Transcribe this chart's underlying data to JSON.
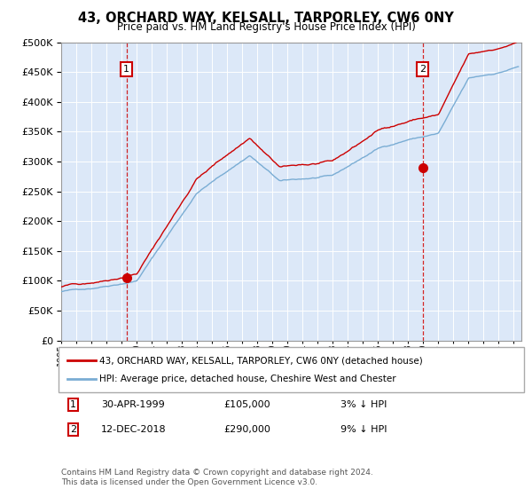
{
  "title": "43, ORCHARD WAY, KELSALL, TARPORLEY, CW6 0NY",
  "subtitle": "Price paid vs. HM Land Registry's House Price Index (HPI)",
  "plot_bg_color": "#dce8f8",
  "xmin": 1995.0,
  "xmax": 2025.5,
  "ymin": 0,
  "ymax": 500000,
  "yticks": [
    0,
    50000,
    100000,
    150000,
    200000,
    250000,
    300000,
    350000,
    400000,
    450000,
    500000
  ],
  "xticks": [
    1995,
    1996,
    1997,
    1998,
    1999,
    2000,
    2001,
    2002,
    2003,
    2004,
    2005,
    2006,
    2007,
    2008,
    2009,
    2010,
    2011,
    2012,
    2013,
    2014,
    2015,
    2016,
    2017,
    2018,
    2019,
    2020,
    2021,
    2022,
    2023,
    2024,
    2025
  ],
  "t1_date": 1999.33,
  "t1_price": 105000,
  "t2_date": 2018.95,
  "t2_price": 290000,
  "legend_line1": "43, ORCHARD WAY, KELSALL, TARPORLEY, CW6 0NY (detached house)",
  "legend_line2": "HPI: Average price, detached house, Cheshire West and Chester",
  "ann1_date": "30-APR-1999",
  "ann1_price": "£105,000",
  "ann1_pct": "3% ↓ HPI",
  "ann2_date": "12-DEC-2018",
  "ann2_price": "£290,000",
  "ann2_pct": "9% ↓ HPI",
  "footnote": "Contains HM Land Registry data © Crown copyright and database right 2024.\nThis data is licensed under the Open Government Licence v3.0.",
  "hpi_color": "#7aadd4",
  "price_color": "#cc0000",
  "dashed_color": "#cc0000"
}
